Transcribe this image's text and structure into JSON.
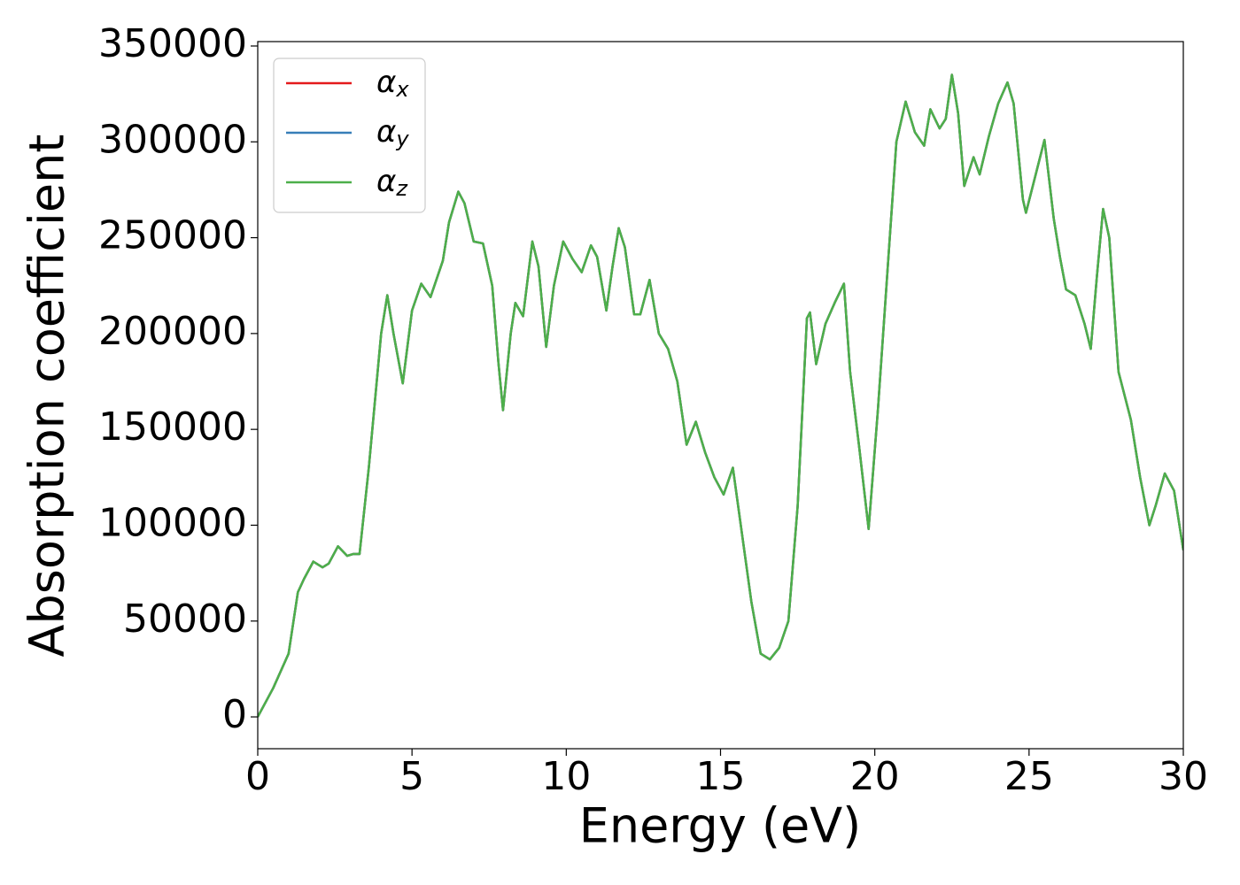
{
  "chart_data": {
    "type": "line",
    "xlabel": "Energy (eV)",
    "ylabel": "Absorption coefficient",
    "x": [
      0,
      0.5,
      1.0,
      1.3,
      1.5,
      1.8,
      2.1,
      2.3,
      2.6,
      2.9,
      3.1,
      3.3,
      3.6,
      4.0,
      4.2,
      4.4,
      4.7,
      5.0,
      5.3,
      5.6,
      6.0,
      6.2,
      6.5,
      6.7,
      7.0,
      7.3,
      7.6,
      7.8,
      7.95,
      8.2,
      8.35,
      8.6,
      8.9,
      9.1,
      9.35,
      9.6,
      9.9,
      10.2,
      10.5,
      10.8,
      11.0,
      11.3,
      11.5,
      11.7,
      11.9,
      12.2,
      12.4,
      12.7,
      13.0,
      13.3,
      13.6,
      13.9,
      14.2,
      14.5,
      14.8,
      15.1,
      15.4,
      15.7,
      16.0,
      16.3,
      16.6,
      16.9,
      17.2,
      17.5,
      17.8,
      17.9,
      18.1,
      18.4,
      18.7,
      19.0,
      19.2,
      19.5,
      19.8,
      20.1,
      20.4,
      20.7,
      21.0,
      21.3,
      21.6,
      21.8,
      22.1,
      22.3,
      22.5,
      22.7,
      22.9,
      23.2,
      23.4,
      23.7,
      24.0,
      24.3,
      24.5,
      24.8,
      24.9,
      25.2,
      25.5,
      25.8,
      26.0,
      26.2,
      26.5,
      26.8,
      27.0,
      27.2,
      27.4,
      27.6,
      27.9,
      28.3,
      28.6,
      28.9,
      29.1,
      29.4,
      29.7,
      30.0
    ],
    "series": [
      {
        "name": "αx",
        "color": "#e41a1c",
        "values": [
          0,
          15000,
          33000,
          65000,
          72000,
          81000,
          78000,
          80000,
          89000,
          84000,
          85000,
          85000,
          130000,
          200000,
          220000,
          200000,
          174000,
          212000,
          226000,
          219000,
          238000,
          258000,
          274000,
          268000,
          248000,
          247000,
          225000,
          185000,
          160000,
          200000,
          216000,
          209000,
          248000,
          235000,
          193000,
          225000,
          248000,
          239000,
          232000,
          246000,
          240000,
          212000,
          235000,
          255000,
          245000,
          210000,
          210000,
          228000,
          200000,
          192000,
          175000,
          142000,
          154000,
          138000,
          125000,
          116000,
          130000,
          95000,
          60000,
          33000,
          30000,
          36000,
          50000,
          110000,
          208000,
          211000,
          184000,
          205000,
          216000,
          226000,
          180000,
          140000,
          98000,
          160000,
          230000,
          300000,
          321000,
          305000,
          298000,
          317000,
          307000,
          312000,
          335000,
          315000,
          277000,
          292000,
          283000,
          303000,
          320000,
          331000,
          320000,
          270000,
          263000,
          282000,
          301000,
          260000,
          240000,
          223000,
          220000,
          205000,
          192000,
          230000,
          265000,
          250000,
          180000,
          155000,
          125000,
          100000,
          110000,
          127000,
          118000,
          87000
        ]
      },
      {
        "name": "αy",
        "color": "#377eb8",
        "values": [
          0,
          15000,
          33000,
          65000,
          72000,
          81000,
          78000,
          80000,
          89000,
          84000,
          85000,
          85000,
          130000,
          200000,
          220000,
          200000,
          174000,
          212000,
          226000,
          219000,
          238000,
          258000,
          274000,
          268000,
          248000,
          247000,
          225000,
          185000,
          160000,
          200000,
          216000,
          209000,
          248000,
          235000,
          193000,
          225000,
          248000,
          239000,
          232000,
          246000,
          240000,
          212000,
          235000,
          255000,
          245000,
          210000,
          210000,
          228000,
          200000,
          192000,
          175000,
          142000,
          154000,
          138000,
          125000,
          116000,
          130000,
          95000,
          60000,
          33000,
          30000,
          36000,
          50000,
          110000,
          208000,
          211000,
          184000,
          205000,
          216000,
          226000,
          180000,
          140000,
          98000,
          160000,
          230000,
          300000,
          321000,
          305000,
          298000,
          317000,
          307000,
          312000,
          335000,
          315000,
          277000,
          292000,
          283000,
          303000,
          320000,
          331000,
          320000,
          270000,
          263000,
          282000,
          301000,
          260000,
          240000,
          223000,
          220000,
          205000,
          192000,
          230000,
          265000,
          250000,
          180000,
          155000,
          125000,
          100000,
          110000,
          127000,
          118000,
          87000
        ]
      },
      {
        "name": "αz",
        "color": "#4daf4a",
        "values": [
          0,
          15000,
          33000,
          65000,
          72000,
          81000,
          78000,
          80000,
          89000,
          84000,
          85000,
          85000,
          130000,
          200000,
          220000,
          200000,
          174000,
          212000,
          226000,
          219000,
          238000,
          258000,
          274000,
          268000,
          248000,
          247000,
          225000,
          185000,
          160000,
          200000,
          216000,
          209000,
          248000,
          235000,
          193000,
          225000,
          248000,
          239000,
          232000,
          246000,
          240000,
          212000,
          235000,
          255000,
          245000,
          210000,
          210000,
          228000,
          200000,
          192000,
          175000,
          142000,
          154000,
          138000,
          125000,
          116000,
          130000,
          95000,
          60000,
          33000,
          30000,
          36000,
          50000,
          110000,
          208000,
          211000,
          184000,
          205000,
          216000,
          226000,
          180000,
          140000,
          98000,
          160000,
          230000,
          300000,
          321000,
          305000,
          298000,
          317000,
          307000,
          312000,
          335000,
          315000,
          277000,
          292000,
          283000,
          303000,
          320000,
          331000,
          320000,
          270000,
          263000,
          282000,
          301000,
          260000,
          240000,
          223000,
          220000,
          205000,
          192000,
          230000,
          265000,
          250000,
          180000,
          155000,
          125000,
          100000,
          110000,
          127000,
          118000,
          87000
        ]
      }
    ],
    "xlim": [
      0,
      30
    ],
    "xticks": [
      0,
      5,
      10,
      15,
      20,
      25,
      30
    ],
    "ylim": [
      -16600,
      352300
    ],
    "yticks": [
      0,
      50000,
      100000,
      150000,
      200000,
      250000,
      300000,
      350000
    ],
    "grid": false,
    "legend": "upper left"
  }
}
